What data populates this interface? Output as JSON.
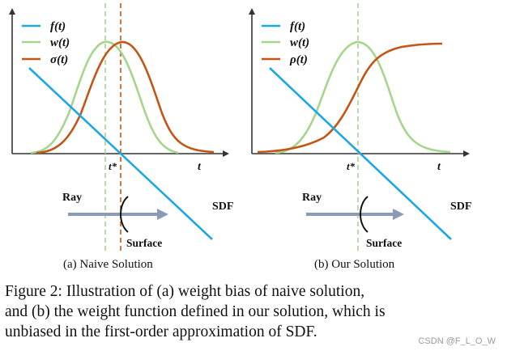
{
  "colors": {
    "f_line": "#1EA7E1",
    "w_line": "#A6D58C",
    "sigma_line": "#C25617",
    "rho_line": "#C25617",
    "dashed_green": "#A6D58C",
    "dashed_red": "#C25617",
    "ray_arrow": "#8A9BB5",
    "axis": "#333333"
  },
  "left_panel": {
    "legend": {
      "f": "f(t)",
      "w": "w(t)",
      "sigma": "σ(t)"
    },
    "t_star": "t*",
    "t_axis": "t",
    "ray": "Ray",
    "sdf": "SDF",
    "surface": "Surface",
    "subcaption": "(a) Naive Solution"
  },
  "right_panel": {
    "legend": {
      "f": "f(t)",
      "w": "w(t)",
      "rho": "ρ(t)"
    },
    "t_star": "t*",
    "t_axis": "t",
    "ray": "Ray",
    "sdf": "SDF",
    "surface": "Surface",
    "subcaption": "(b) Our Solution"
  },
  "caption": {
    "line1": "Figure 2: Illustration of (a) weight bias of naive solution,",
    "line2": "and (b) the weight function defined in our solution, which is",
    "line3": "unbiased in the first-order approximation of SDF."
  },
  "watermark": "CSDN @F_L_O_W"
}
